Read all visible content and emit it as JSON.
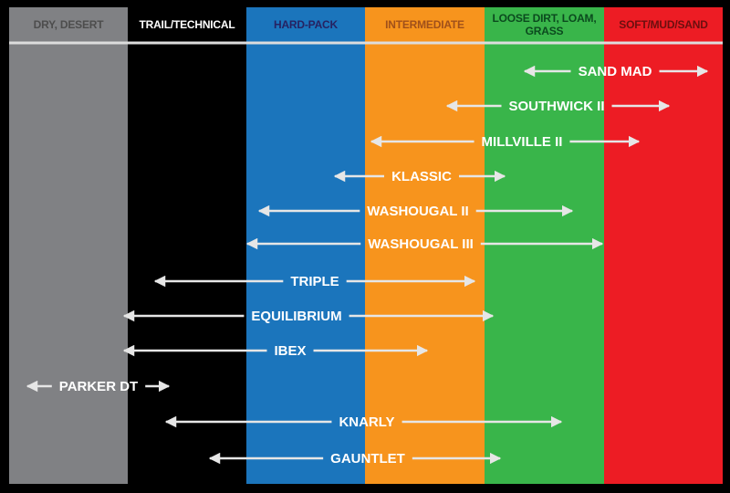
{
  "columns": [
    {
      "label": "DRY, DESERT"
    },
    {
      "label": "TRAIL/TECHNICAL"
    },
    {
      "label": "HARD-PACK"
    },
    {
      "label": "INTERMEDIATE"
    },
    {
      "label": "LOOSE DIRT, LOAM, GRASS"
    },
    {
      "label": "SOFT/MUD/SAND"
    }
  ],
  "tires": [
    {
      "label": "SAND MAD"
    },
    {
      "label": "SOUTHWICK II"
    },
    {
      "label": "MILLVILLE II"
    },
    {
      "label": "KLASSIC"
    },
    {
      "label": "WASHOUGAL II"
    },
    {
      "label": "WASHOUGAL III"
    },
    {
      "label": "TRIPLE"
    },
    {
      "label": "EQUILIBRIUM"
    },
    {
      "label": "IBEX"
    },
    {
      "label": "PARKER DT"
    },
    {
      "label": "KNARLY"
    },
    {
      "label": "GAUNTLET"
    }
  ]
}
